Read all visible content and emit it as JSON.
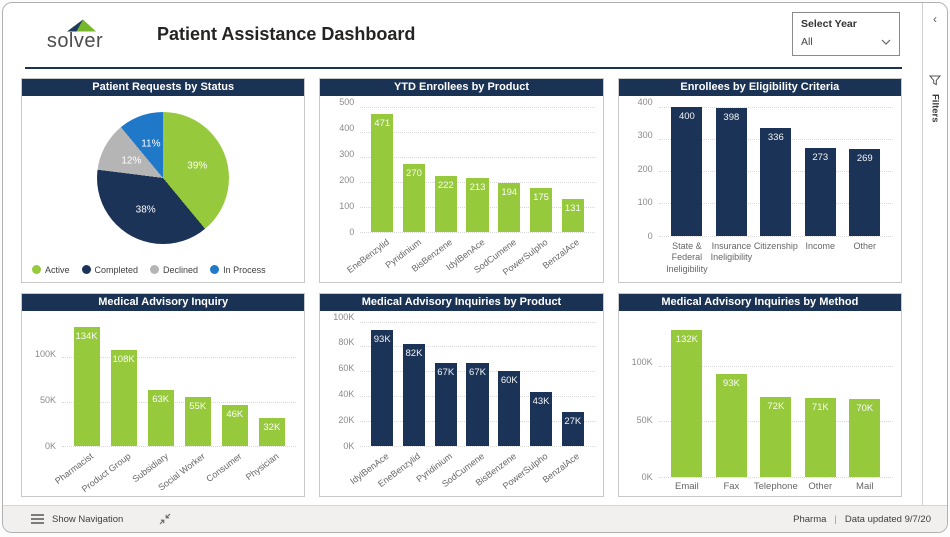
{
  "header": {
    "logo_text": "solver",
    "title": "Patient Assistance Dashboard",
    "slicer": {
      "label": "Select Year",
      "value": "All"
    }
  },
  "filters_pane": {
    "label": "Filters"
  },
  "footer": {
    "show_navigation": "Show Navigation",
    "brand": "Pharma",
    "separator": "|",
    "updated": "Data updated 9/7/20"
  },
  "colors": {
    "green": "#97C93D",
    "navy": "#1B3356",
    "panel_header": "#1A3254",
    "gray": "#B5B5B5",
    "blue": "#1F78C8"
  },
  "chart_data": [
    {
      "id": "requests-by-status",
      "type": "pie",
      "title": "Patient Requests by Status",
      "labels": [
        "Active",
        "Completed",
        "Declined",
        "In Process"
      ],
      "values": [
        39,
        38,
        12,
        11
      ],
      "display": [
        "39%",
        "38%",
        "12%",
        "11%"
      ],
      "colors": [
        "#97C93D",
        "#1B3356",
        "#B5B5B5",
        "#1F78C8"
      ],
      "legend_position": "bottom"
    },
    {
      "id": "ytd-enrollees-by-product",
      "type": "bar",
      "title": "YTD Enrollees by Product",
      "bar_color": "#97C93D",
      "ymax": 500,
      "yticks": [
        {
          "v": 0,
          "label": "0"
        },
        {
          "v": 100,
          "label": "100"
        },
        {
          "v": 200,
          "label": "200"
        },
        {
          "v": 300,
          "label": "300"
        },
        {
          "v": 400,
          "label": "400"
        },
        {
          "v": 500,
          "label": "500"
        }
      ],
      "categories": [
        "EneBenzylid",
        "Pyridinium",
        "BisBenzene",
        "IdylBenAce",
        "SodCumene",
        "PowerSulpho",
        "BenzalAce"
      ],
      "values": [
        471,
        270,
        222,
        213,
        194,
        175,
        131
      ],
      "value_labels": [
        "471",
        "270",
        "222",
        "213",
        "194",
        "175",
        "131"
      ],
      "xlabel_mode": "rotated"
    },
    {
      "id": "enrollees-by-eligibility",
      "type": "bar",
      "title": "Enrollees by Eligibility Criteria",
      "bar_color": "#1B3356",
      "ymax": 400,
      "yticks": [
        {
          "v": 0,
          "label": "0"
        },
        {
          "v": 100,
          "label": "100"
        },
        {
          "v": 200,
          "label": "200"
        },
        {
          "v": 300,
          "label": "300"
        },
        {
          "v": 400,
          "label": "400"
        }
      ],
      "categories": [
        "State &\nFederal\nIneligibility",
        "Insurance\nIneligibility",
        "Citizenship",
        "Income",
        "Other"
      ],
      "values": [
        400,
        398,
        336,
        273,
        269
      ],
      "value_labels": [
        "400",
        "398",
        "336",
        "273",
        "269"
      ],
      "xlabel_mode": "multiline"
    },
    {
      "id": "medical-advisory-inquiry",
      "type": "bar",
      "title": "Medical Advisory Inquiry",
      "bar_color": "#97C93D",
      "ymax": 140,
      "yticks": [
        {
          "v": 0,
          "label": "0K"
        },
        {
          "v": 50,
          "label": "50K"
        },
        {
          "v": 100,
          "label": "100K"
        }
      ],
      "categories": [
        "Pharmacist",
        "Product Group",
        "Subsidiary",
        "Social Worker",
        "Consumer",
        "Physician"
      ],
      "values": [
        134,
        108,
        63,
        55,
        46,
        32
      ],
      "value_labels": [
        "134K",
        "108K",
        "63K",
        "55K",
        "46K",
        "32K"
      ],
      "xlabel_mode": "rotated"
    },
    {
      "id": "inquiries-by-product",
      "type": "bar",
      "title": "Medical Advisory Inquiries by Product",
      "bar_color": "#1B3356",
      "ymax": 100,
      "yticks": [
        {
          "v": 0,
          "label": "0K"
        },
        {
          "v": 20,
          "label": "20K"
        },
        {
          "v": 40,
          "label": "40K"
        },
        {
          "v": 60,
          "label": "60K"
        },
        {
          "v": 80,
          "label": "80K"
        },
        {
          "v": 100,
          "label": "100K"
        }
      ],
      "categories": [
        "IdylBenAce",
        "EneBenzylid",
        "Pyridinium",
        "SodCumene",
        "BisBenzene",
        "PowerSulpho",
        "BenzalAce"
      ],
      "values": [
        93,
        82,
        67,
        67,
        60,
        43,
        27
      ],
      "value_labels": [
        "93K",
        "82K",
        "67K",
        "67K",
        "60K",
        "43K",
        "27K"
      ],
      "xlabel_mode": "rotated"
    },
    {
      "id": "inquiries-by-method",
      "type": "bar",
      "title": "Medical Advisory Inquiries by Method",
      "bar_color": "#97C93D",
      "ymax": 140,
      "yticks": [
        {
          "v": 0,
          "label": "0K"
        },
        {
          "v": 50,
          "label": "50K"
        },
        {
          "v": 100,
          "label": "100K"
        }
      ],
      "categories": [
        "Email",
        "Fax",
        "Telephone",
        "Other",
        "Mail"
      ],
      "values": [
        132,
        93,
        72,
        71,
        70
      ],
      "value_labels": [
        "132K",
        "93K",
        "72K",
        "71K",
        "70K"
      ],
      "xlabel_mode": "flat"
    }
  ]
}
